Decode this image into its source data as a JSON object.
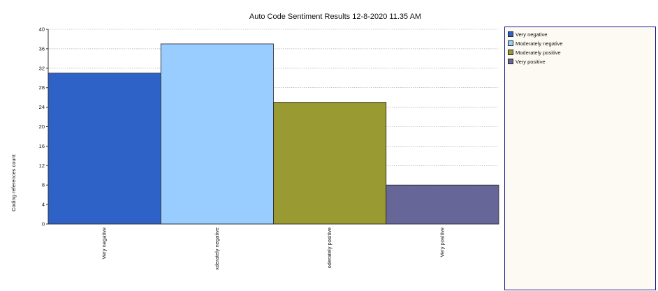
{
  "chart_data": {
    "type": "bar",
    "title": "Auto Code Sentiment Results 12-8-2020 11.35 AM",
    "ylabel": "Coding references count",
    "xlabel": "",
    "ylim": [
      0,
      40
    ],
    "yticks": [
      0,
      4,
      8,
      12,
      16,
      20,
      24,
      28,
      32,
      36,
      40
    ],
    "categories": [
      "Very negative",
      "Moderately negative",
      "Moderately positive",
      "Very positive"
    ],
    "tick_labels": [
      "Very negative",
      "xderately negative",
      "oderately positive",
      "Very positive"
    ],
    "values": [
      31,
      37,
      25,
      8
    ],
    "colors": [
      "#2f62c7",
      "#99ccff",
      "#9a9a33",
      "#666699"
    ],
    "grid": true,
    "legend": {
      "position": "right",
      "entries": [
        "Very negative",
        "Moderately negative",
        "Moderately positive",
        "Very positive"
      ]
    }
  }
}
